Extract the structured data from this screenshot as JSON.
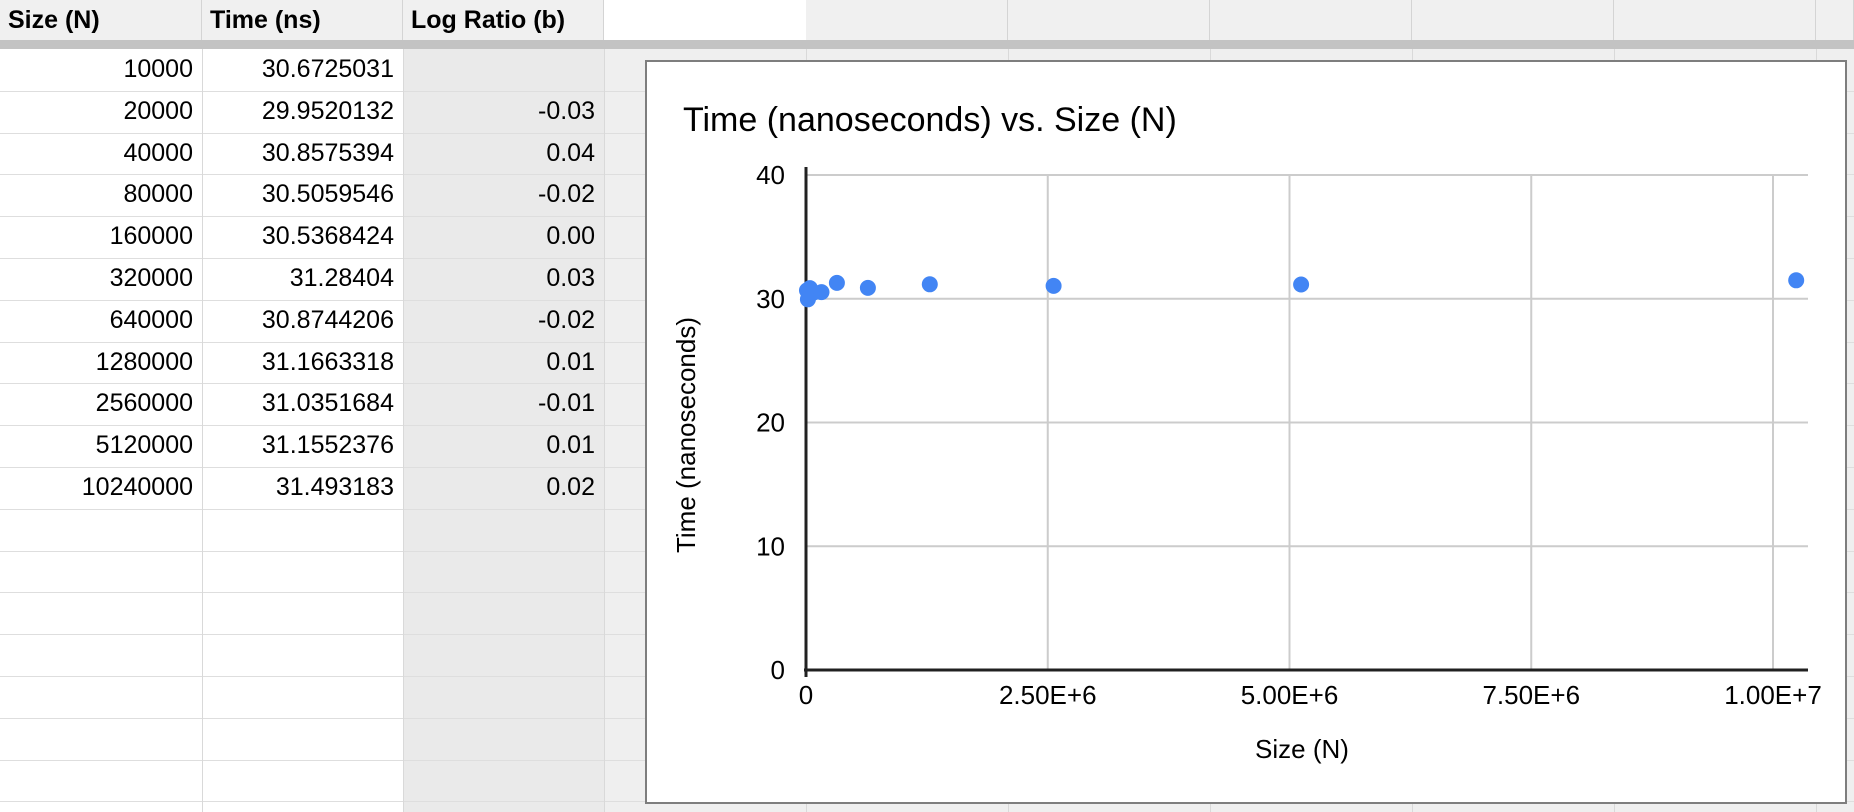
{
  "sheet": {
    "columns": [
      {
        "id": "A",
        "label": "Size (N)",
        "bg": "#ffffff"
      },
      {
        "id": "B",
        "label": "Time (ns)",
        "bg": "#ffffff"
      },
      {
        "id": "C",
        "label": "Log Ratio (b)",
        "bg": "#eaeaea"
      }
    ],
    "rows": [
      {
        "size": "10000",
        "time": "30.6725031",
        "log": ""
      },
      {
        "size": "20000",
        "time": "29.9520132",
        "log": "-0.03"
      },
      {
        "size": "40000",
        "time": "30.8575394",
        "log": "0.04"
      },
      {
        "size": "80000",
        "time": "30.5059546",
        "log": "-0.02"
      },
      {
        "size": "160000",
        "time": "30.5368424",
        "log": "0.00"
      },
      {
        "size": "320000",
        "time": "31.28404",
        "log": "0.03"
      },
      {
        "size": "640000",
        "time": "30.8744206",
        "log": "-0.02"
      },
      {
        "size": "1280000",
        "time": "31.1663318",
        "log": "0.01"
      },
      {
        "size": "2560000",
        "time": "31.0351684",
        "log": "-0.01"
      },
      {
        "size": "5120000",
        "time": "31.1552376",
        "log": "0.01"
      },
      {
        "size": "10240000",
        "time": "31.493183",
        "log": "0.02"
      }
    ],
    "empty_row_count": 8,
    "colors": {
      "header_bg": "#f0f0f0",
      "frozen_divider": "#c3c3c3",
      "backdrop_bg": "#efefef"
    }
  },
  "chart_data": {
    "type": "scatter",
    "title": "Time (nanoseconds) vs. Size (N)",
    "xlabel": "Size (N)",
    "ylabel": "Time (nanoseconds)",
    "x": [
      10000,
      20000,
      40000,
      80000,
      160000,
      320000,
      640000,
      1280000,
      2560000,
      5120000,
      10240000
    ],
    "y": [
      30.6725031,
      29.9520132,
      30.8575394,
      30.5059546,
      30.5368424,
      31.28404,
      30.8744206,
      31.1663318,
      31.0351684,
      31.1552376,
      31.493183
    ],
    "xlim": [
      0,
      10000000
    ],
    "ylim": [
      0,
      40
    ],
    "x_ticks": [
      {
        "value": 0,
        "label": "0"
      },
      {
        "value": 2500000,
        "label": "2.50E+6"
      },
      {
        "value": 5000000,
        "label": "5.00E+6"
      },
      {
        "value": 7500000,
        "label": "7.50E+6"
      },
      {
        "value": 10000000,
        "label": "1.00E+7"
      }
    ],
    "y_ticks": [
      {
        "value": 0,
        "label": "0"
      },
      {
        "value": 10,
        "label": "10"
      },
      {
        "value": 20,
        "label": "20"
      },
      {
        "value": 30,
        "label": "30"
      },
      {
        "value": 40,
        "label": "40"
      }
    ],
    "grid": true,
    "legend": "none",
    "point_color": "#4285f4",
    "title_color": "#757575",
    "gridline_color": "#cccccc",
    "axis_color": "#212121"
  }
}
